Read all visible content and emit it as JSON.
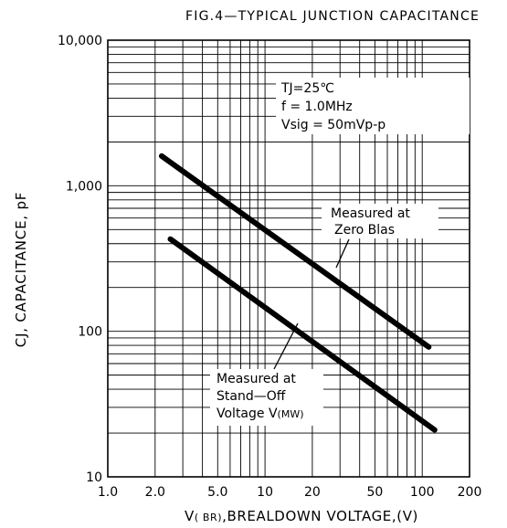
{
  "chart_data": {
    "type": "line",
    "title": "FIG.4—TYPICAL JUNCTION CAPACITANCE",
    "xlabel_main": "V",
    "xlabel_sub": "( BR)",
    "xlabel_rest": ",BREALDOWN VOLTAGE,(V)",
    "ylabel": "CJ, CAPACITANCE, pF",
    "x_scale": "log",
    "y_scale": "log",
    "xlim": [
      1,
      200
    ],
    "ylim": [
      10,
      10000
    ],
    "grid": true,
    "x_ticks": [
      {
        "value": 1,
        "label": "1.0"
      },
      {
        "value": 2,
        "label": "2.0"
      },
      {
        "value": 5,
        "label": "5.0"
      },
      {
        "value": 10,
        "label": "10"
      },
      {
        "value": 20,
        "label": "20"
      },
      {
        "value": 50,
        "label": "50"
      },
      {
        "value": 100,
        "label": "100"
      },
      {
        "value": 200,
        "label": "200"
      }
    ],
    "y_ticks": [
      {
        "value": 10,
        "label": "10"
      },
      {
        "value": 100,
        "label": "100"
      },
      {
        "value": 1000,
        "label": "1,000"
      },
      {
        "value": 10000,
        "label": "10,000"
      }
    ],
    "conditions": [
      "TJ=25℃",
      "f = 1.0MHz",
      "Vsig = 50mVp-p"
    ],
    "series": [
      {
        "name": "Measured at Zero Bias",
        "label_lines": [
          "Measured at",
          "Zero Blas"
        ],
        "x": [
          2.2,
          110
        ],
        "y": [
          1600,
          78
        ]
      },
      {
        "name": "Measured at Stand-Off Voltage V(MW)",
        "label_lines": [
          "Measured at",
          "Stand—Off"
        ],
        "label_last_main": "Voltage V",
        "label_last_sub": "(MW)",
        "x": [
          2.5,
          120
        ],
        "y": [
          430,
          21
        ]
      }
    ]
  }
}
